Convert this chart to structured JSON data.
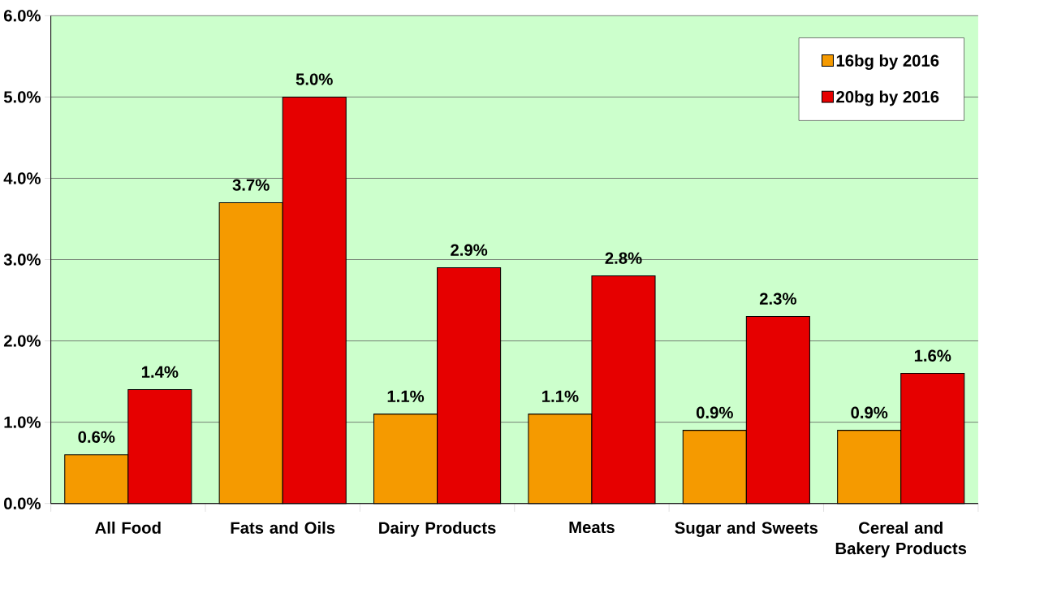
{
  "chart_data": {
    "type": "bar",
    "categories": [
      "All Food",
      "Fats and Oils",
      "Dairy Products",
      "Meats",
      "Sugar and Sweets",
      "Cereal and Bakery Products"
    ],
    "series": [
      {
        "name": "16bg by 2016",
        "color": "#f59a00",
        "values": [
          0.6,
          3.7,
          1.1,
          1.1,
          0.9,
          0.9
        ],
        "value_labels": [
          "0.6%",
          "3.7%",
          "1.1%",
          "1.1%",
          "0.9%",
          "0.9%"
        ]
      },
      {
        "name": "20bg by 2016",
        "color": "#e60000",
        "values": [
          1.4,
          5.0,
          2.9,
          2.8,
          2.3,
          1.6
        ],
        "value_labels": [
          "1.4%",
          "5.0%",
          "2.9%",
          "2.8%",
          "2.3%",
          "1.6%"
        ]
      }
    ],
    "ylim": [
      0,
      6
    ],
    "yticks": [
      {
        "value": 0,
        "label": "0.0%"
      },
      {
        "value": 1,
        "label": "1.0%"
      },
      {
        "value": 2,
        "label": "2.0%"
      },
      {
        "value": 3,
        "label": "3.0%"
      },
      {
        "value": 4,
        "label": "4.0%"
      },
      {
        "value": 5,
        "label": "5.0%"
      },
      {
        "value": 6,
        "label": "6.0%"
      }
    ],
    "grid": "y",
    "legend": "top right"
  }
}
